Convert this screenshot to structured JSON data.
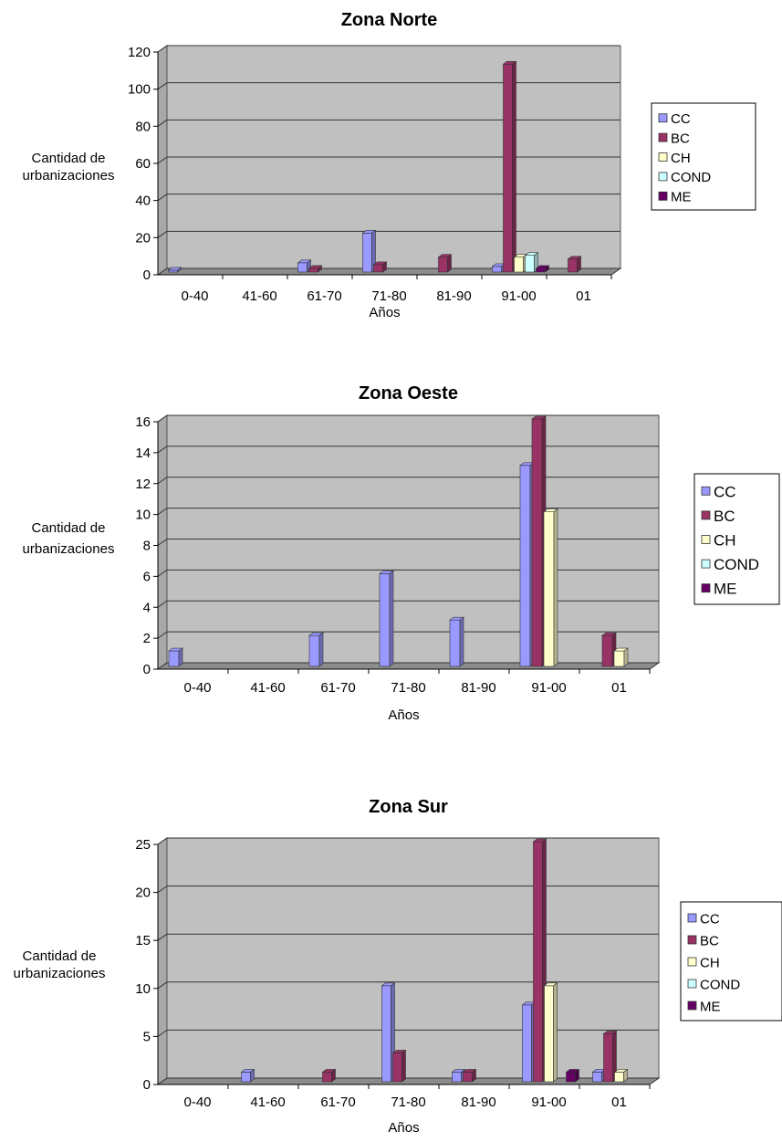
{
  "chart_data": [
    {
      "type": "bar",
      "title": "Zona Norte",
      "xlabel": "Años",
      "ylabel": [
        "Cantidad de",
        "urbanizaciones"
      ],
      "categories": [
        "0-40",
        "41-60",
        "61-70",
        "71-80",
        "81-90",
        "91-00",
        "01"
      ],
      "ylim": [
        0,
        120
      ],
      "yticks": [
        0,
        20,
        40,
        60,
        80,
        100,
        120
      ],
      "grid": true,
      "legend_position": "right",
      "series": [
        {
          "name": "CC",
          "color": "#9999ff",
          "values": [
            1,
            0,
            5,
            21,
            0,
            3,
            0
          ]
        },
        {
          "name": "BC",
          "color": "#993366",
          "values": [
            0,
            0,
            2,
            4,
            8,
            112,
            7
          ]
        },
        {
          "name": "CH",
          "color": "#ffffcc",
          "values": [
            0,
            0,
            0,
            0,
            0,
            8,
            0
          ]
        },
        {
          "name": "COND",
          "color": "#ccffff",
          "values": [
            0,
            0,
            0,
            0,
            0,
            9,
            0
          ]
        },
        {
          "name": "ME",
          "color": "#660066",
          "values": [
            0,
            0,
            0,
            0,
            0,
            2,
            0
          ]
        }
      ]
    },
    {
      "type": "bar",
      "title": "Zona Oeste",
      "xlabel": "Años",
      "ylabel": [
        "Cantidad de",
        "urbanizaciones"
      ],
      "categories": [
        "0-40",
        "41-60",
        "61-70",
        "71-80",
        "81-90",
        "91-00",
        "01"
      ],
      "ylim": [
        0,
        16
      ],
      "yticks": [
        0,
        2,
        4,
        6,
        8,
        10,
        12,
        14,
        16
      ],
      "grid": true,
      "legend_position": "right",
      "series": [
        {
          "name": "CC",
          "color": "#9999ff",
          "values": [
            1,
            0,
            2,
            6,
            3,
            13,
            0
          ]
        },
        {
          "name": "BC",
          "color": "#993366",
          "values": [
            0,
            0,
            0,
            0,
            0,
            16,
            2
          ]
        },
        {
          "name": "CH",
          "color": "#ffffcc",
          "values": [
            0,
            0,
            0,
            0,
            0,
            10,
            1
          ]
        },
        {
          "name": "COND",
          "color": "#ccffff",
          "values": [
            0,
            0,
            0,
            0,
            0,
            0,
            0
          ]
        },
        {
          "name": "ME",
          "color": "#660066",
          "values": [
            0,
            0,
            0,
            0,
            0,
            0,
            0
          ]
        }
      ]
    },
    {
      "type": "bar",
      "title": "Zona Sur",
      "xlabel": "Años",
      "ylabel": [
        "Cantidad de",
        "urbanizaciones"
      ],
      "categories": [
        "0-40",
        "41-60",
        "61-70",
        "71-80",
        "81-90",
        "91-00",
        "01"
      ],
      "ylim": [
        0,
        25
      ],
      "yticks": [
        0,
        5,
        10,
        15,
        20,
        25
      ],
      "grid": true,
      "legend_position": "right",
      "series": [
        {
          "name": "CC",
          "color": "#9999ff",
          "values": [
            0,
            1,
            0,
            10,
            1,
            8,
            1
          ]
        },
        {
          "name": "BC",
          "color": "#993366",
          "values": [
            0,
            0,
            1,
            3,
            1,
            25,
            5
          ]
        },
        {
          "name": "CH",
          "color": "#ffffcc",
          "values": [
            0,
            0,
            0,
            0,
            0,
            10,
            1
          ]
        },
        {
          "name": "COND",
          "color": "#ccffff",
          "values": [
            0,
            0,
            0,
            0,
            0,
            0,
            0
          ]
        },
        {
          "name": "ME",
          "color": "#660066",
          "values": [
            0,
            0,
            0,
            0,
            0,
            1,
            0
          ]
        }
      ]
    }
  ]
}
